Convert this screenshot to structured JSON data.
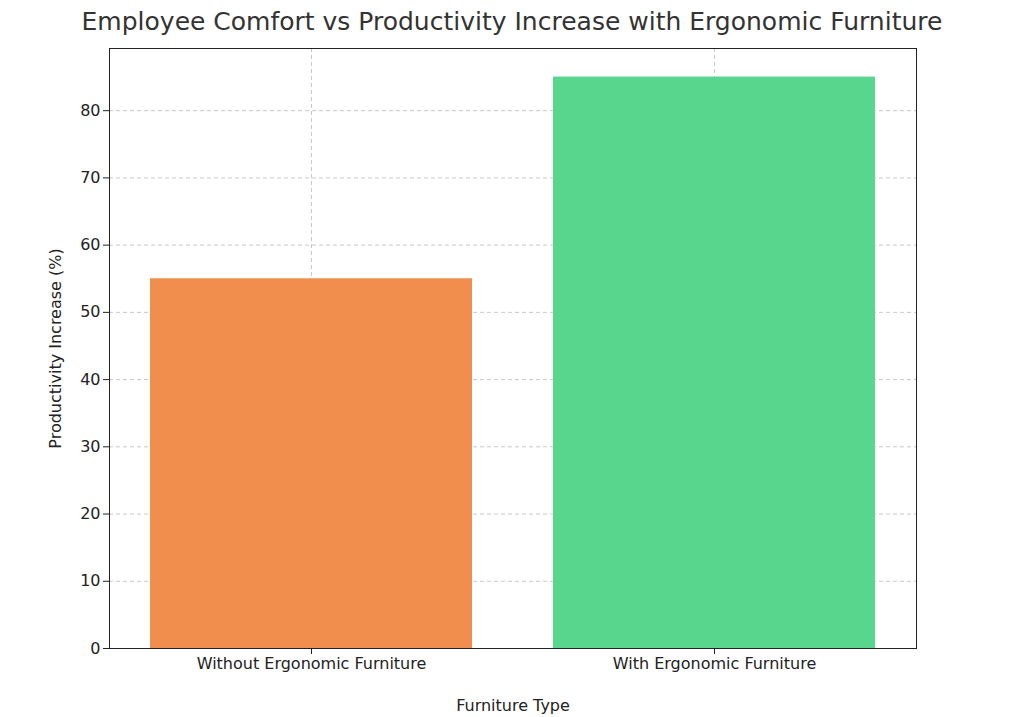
{
  "chart_data": {
    "type": "bar",
    "title": "Employee Comfort vs Productivity Increase with Ergonomic Furniture",
    "x_label": "Furniture Type",
    "y_label": "Productivity Increase (%)",
    "categories": [
      "Without Ergonomic Furniture",
      "With Ergonomic Furniture"
    ],
    "values": [
      55,
      85
    ],
    "colors": [
      "#f28e4d",
      "#58d68d"
    ],
    "ylim": [
      0,
      89.25
    ],
    "yticks": [
      0,
      10,
      20,
      30,
      40,
      50,
      60,
      70,
      80
    ],
    "grid": true
  }
}
